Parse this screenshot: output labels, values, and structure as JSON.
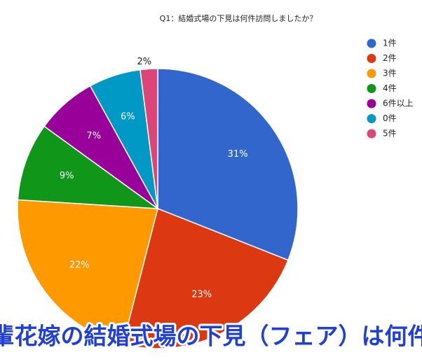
{
  "chart_data": {
    "type": "pie",
    "title": "Q1：結婚式場の下見は何件訪問しましたか？",
    "categories": [
      "1件",
      "2件",
      "3件",
      "4件",
      "6件以上",
      "0件",
      "5件"
    ],
    "values": [
      31,
      23,
      22,
      9,
      7,
      6,
      2
    ],
    "value_labels": [
      "31%",
      "23%",
      "22%",
      "9%",
      "7%",
      "6%",
      "2%"
    ],
    "colors": [
      "#3366cc",
      "#dc3912",
      "#ff9900",
      "#109618",
      "#990099",
      "#0099c6",
      "#dd4477"
    ],
    "legend": "right",
    "caption": "先輩花嫁の結婚式場の下見（フェア）は何件？"
  }
}
